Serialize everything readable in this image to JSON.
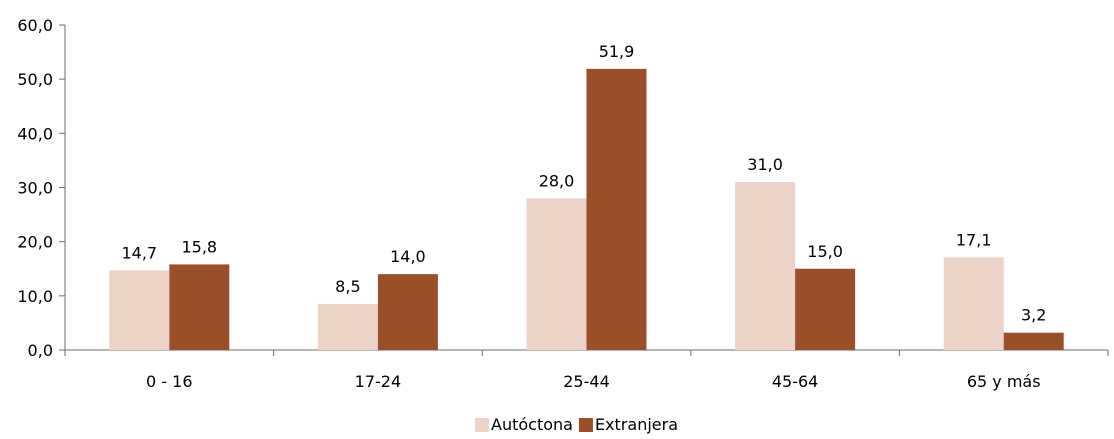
{
  "chart_data": {
    "type": "bar",
    "categories": [
      "0 - 16",
      "17-24",
      "25-44",
      "45-64",
      "65 y más"
    ],
    "series": [
      {
        "name": "Autóctona",
        "values": [
          14.7,
          8.5,
          28.0,
          31.0,
          17.1
        ],
        "labels": [
          "14,7",
          "8,5",
          "28,0",
          "31,0",
          "17,1"
        ],
        "color": "#ecd3c8"
      },
      {
        "name": "Extranjera",
        "values": [
          15.8,
          14.0,
          51.9,
          15.0,
          3.2
        ],
        "labels": [
          "15,8",
          "14,0",
          "51,9",
          "15,0",
          "3,2"
        ],
        "color": "#9a4f2a"
      }
    ],
    "ylim": [
      0,
      60
    ],
    "yticks": [
      0,
      10,
      20,
      30,
      40,
      50,
      60
    ],
    "ytick_labels": [
      "0,0",
      "10,0",
      "20,0",
      "30,0",
      "40,0",
      "50,0",
      "60,0"
    ],
    "grid": false,
    "legend_position": "bottom-center",
    "axis_color": "#6e6e6e"
  }
}
